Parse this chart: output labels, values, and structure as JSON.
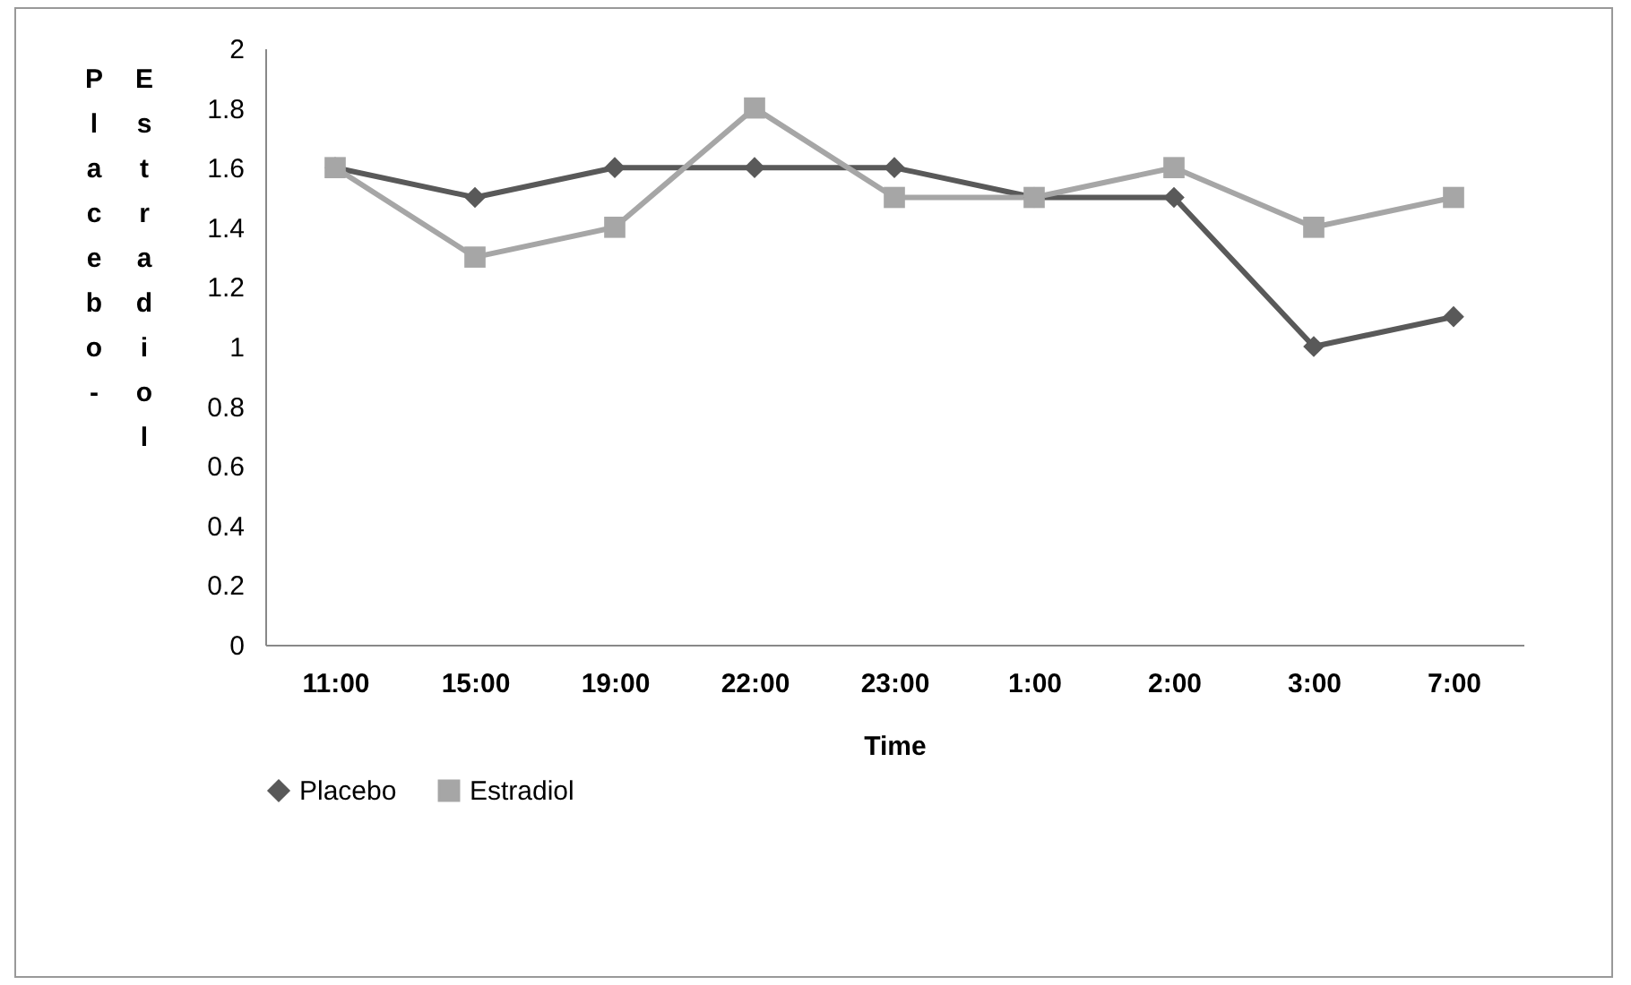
{
  "chart_data": {
    "type": "line",
    "xlabel": "Time",
    "ylabel": "Placebo-Estradiol",
    "categories": [
      "11:00",
      "15:00",
      "19:00",
      "22:00",
      "23:00",
      "1:00",
      "2:00",
      "3:00",
      "7:00"
    ],
    "series": [
      {
        "name": "Placebo",
        "color": "#595959",
        "marker": "diamond",
        "values": [
          1.6,
          1.5,
          1.6,
          1.6,
          1.6,
          1.5,
          1.5,
          1.0,
          1.1
        ]
      },
      {
        "name": "Estradiol",
        "color": "#a6a6a6",
        "marker": "square",
        "values": [
          1.6,
          1.3,
          1.4,
          1.8,
          1.5,
          1.5,
          1.6,
          1.4,
          1.5
        ]
      }
    ],
    "ylim": [
      0,
      2
    ],
    "yticks": [
      0,
      0.2,
      0.4,
      0.6,
      0.8,
      1,
      1.2,
      1.4,
      1.6,
      1.8,
      2
    ],
    "grid": false,
    "legend": "bottom",
    "line_style": "solid"
  }
}
